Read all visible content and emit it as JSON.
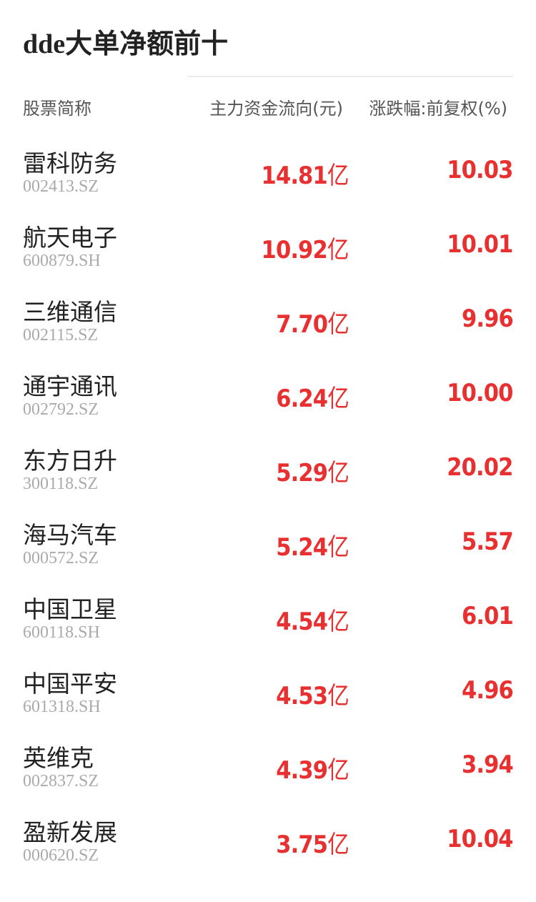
{
  "title": "dde大单净额前十",
  "headers": {
    "name": "股票简称",
    "flow": "主力资金流向(元)",
    "change": "涨跌幅:前复权(%)"
  },
  "colors": {
    "up": "#e93030",
    "text": "#222222",
    "code": "#aaaaaa"
  },
  "unit": "亿",
  "rows": [
    {
      "name": "雷科防务",
      "code": "002413.SZ",
      "flow": "14.81",
      "change": "10.03"
    },
    {
      "name": "航天电子",
      "code": "600879.SH",
      "flow": "10.92",
      "change": "10.01"
    },
    {
      "name": "三维通信",
      "code": "002115.SZ",
      "flow": "7.70",
      "change": "9.96"
    },
    {
      "name": "通宇通讯",
      "code": "002792.SZ",
      "flow": "6.24",
      "change": "10.00"
    },
    {
      "name": "东方日升",
      "code": "300118.SZ",
      "flow": "5.29",
      "change": "20.02"
    },
    {
      "name": "海马汽车",
      "code": "000572.SZ",
      "flow": "5.24",
      "change": "5.57"
    },
    {
      "name": "中国卫星",
      "code": "600118.SH",
      "flow": "4.54",
      "change": "6.01"
    },
    {
      "name": "中国平安",
      "code": "601318.SH",
      "flow": "4.53",
      "change": "4.96"
    },
    {
      "name": "英维克",
      "code": "002837.SZ",
      "flow": "4.39",
      "change": "3.94"
    },
    {
      "name": "盈新发展",
      "code": "000620.SZ",
      "flow": "3.75",
      "change": "10.04"
    }
  ]
}
